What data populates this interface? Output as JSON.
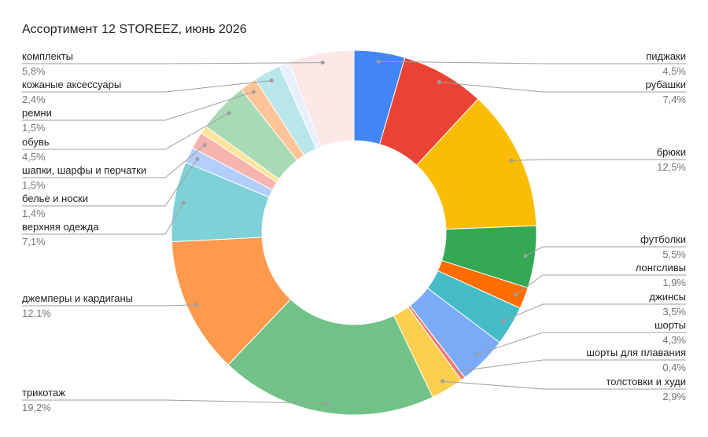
{
  "chart_data": {
    "type": "pie",
    "donut": true,
    "title": "Ассортимент 12 STOREEZ, июнь 2026",
    "categories": [
      "пиджаки",
      "рубашки",
      "брюки",
      "футболки",
      "лонгсливы",
      "джинсы",
      "шорты",
      "шорты для плавания",
      "толстовки и худи",
      "трикотаж",
      "джемперы и кардиганы",
      "верхняя одежда",
      "белье и носки",
      "шапки, шарфы и перчатки",
      null,
      "обувь",
      "ремни",
      "кожаные аксессуары",
      null,
      "комплекты"
    ],
    "values": [
      4.5,
      7.4,
      12.5,
      5.5,
      1.9,
      3.5,
      4.3,
      0.4,
      2.9,
      19.2,
      12.1,
      7.1,
      1.4,
      1.5,
      0.7,
      4.5,
      1.5,
      2.4,
      0.9,
      5.8
    ],
    "value_labels": [
      "4,5%",
      "7,4%",
      "12,5%",
      "5,5%",
      "1,9%",
      "3,5%",
      "4,3%",
      "0,4%",
      "2,9%",
      "19,2%",
      "12,1%",
      "7,1%",
      "1,4%",
      "1,5%",
      null,
      "4,5%",
      "1,5%",
      "2,4%",
      null,
      "5,8%"
    ],
    "colors": [
      "#4285f4",
      "#ea4335",
      "#fbbc04",
      "#34a853",
      "#ff6d01",
      "#46bdc6",
      "#7baaf7",
      "#f07b72",
      "#fcd04f",
      "#71c287",
      "#ff994d",
      "#7ed1d7",
      "#b3cefb",
      "#f7b4ae",
      "#fde49b",
      "#a8dab5",
      "#ffc599",
      "#b8e6ea",
      "#e8f0fe",
      "#fce8e6"
    ]
  }
}
